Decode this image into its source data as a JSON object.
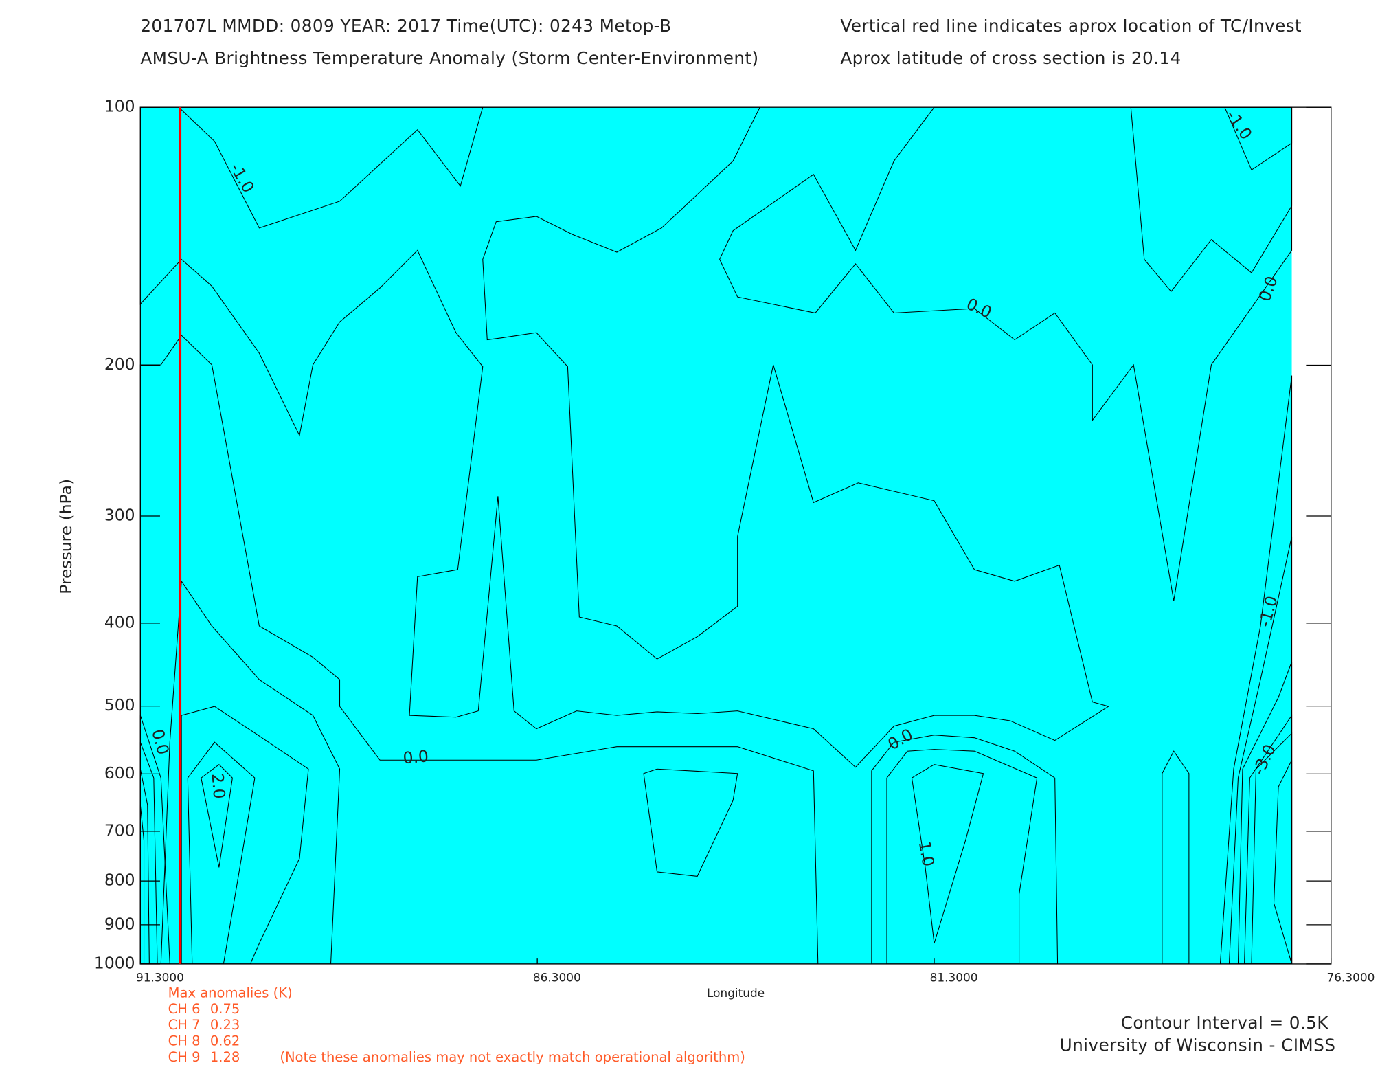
{
  "header": {
    "line1": "201707L  MMDD: 0809 YEAR: 2017 Time(UTC): 0243 Metop-B",
    "line2": "AMSU-A Brightness Temperature Anomaly (Storm Center-Environment)",
    "note1": "Vertical red line indicates aprox location of TC/Invest",
    "note2": "Aprox latitude of cross section is 20.14"
  },
  "chart_data": {
    "type": "contour",
    "x_label": "Longitude",
    "y_label": "Pressure (hPa)",
    "xlim": [
      91.3,
      76.3
    ],
    "xticks": [
      {
        "value": 91.3,
        "label": "91.3000"
      },
      {
        "value": 86.3,
        "label": "86.3000"
      },
      {
        "value": 81.3,
        "label": "81.3000"
      },
      {
        "value": 76.3,
        "label": "76.3000"
      }
    ],
    "ylim": [
      1000,
      100
    ],
    "log_y": true,
    "yticks": [
      100,
      200,
      300,
      400,
      500,
      600,
      700,
      800,
      900,
      1000
    ],
    "tc_longitude": 90.8,
    "tc_line_color": "#ff0000",
    "contour_labels": [
      {
        "lon": 90.03,
        "pressure": 121,
        "value": -1,
        "label": "-1.0"
      },
      {
        "lon": 77.47,
        "pressure": 105,
        "value": -1,
        "label": "-1.0"
      },
      {
        "lon": 80.74,
        "pressure": 172,
        "value": 0,
        "label": "0.0"
      },
      {
        "lon": 77.08,
        "pressure": 163,
        "value": 0,
        "label": "0.0"
      },
      {
        "lon": 87.83,
        "pressure": 575,
        "value": 0,
        "label": "0.0"
      },
      {
        "lon": 81.72,
        "pressure": 548,
        "value": 0,
        "label": "0.0"
      },
      {
        "lon": 77.08,
        "pressure": 388,
        "value": -1,
        "label": "-1.0"
      },
      {
        "lon": 91.06,
        "pressure": 551,
        "value": 0,
        "label": "0.0"
      },
      {
        "lon": 90.33,
        "pressure": 620,
        "value": 2,
        "label": "2.0"
      },
      {
        "lon": 81.41,
        "pressure": 744,
        "value": 1,
        "label": "1.0"
      },
      {
        "lon": 77.13,
        "pressure": 578,
        "value": -3,
        "label": "-3.0"
      }
    ]
  },
  "max_anomalies": {
    "title": "Max anomalies (K)",
    "rows": [
      {
        "channel": "CH 6",
        "value": 0.75
      },
      {
        "channel": "CH 7",
        "value": 0.23
      },
      {
        "channel": "CH 8",
        "value": 0.62
      },
      {
        "channel": "CH 9",
        "value": 1.28
      }
    ],
    "note": "(Note these anomalies may not exactly match operational algorithm)"
  },
  "footer": {
    "interval": "Contour Interval = 0.5K",
    "credit": "University of Wisconsin - CIMSS"
  }
}
